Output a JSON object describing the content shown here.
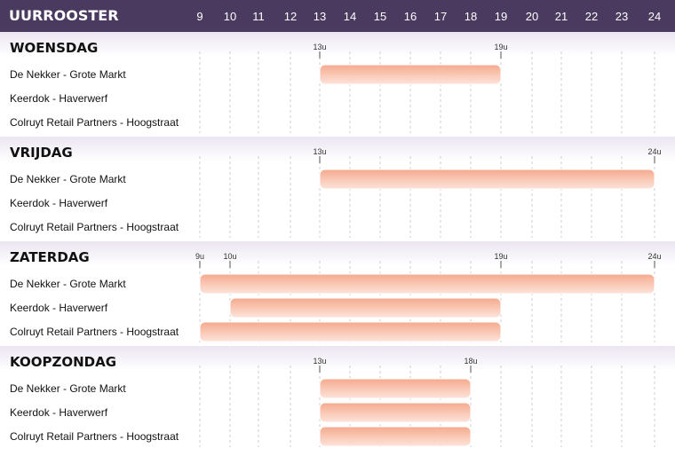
{
  "chart_data": {
    "type": "gantt",
    "title": "UURROOSTER",
    "hours": [
      9,
      10,
      11,
      12,
      13,
      14,
      15,
      16,
      17,
      18,
      19,
      20,
      21,
      22,
      23,
      24
    ],
    "rows": [
      "De Nekker - Grote Markt",
      "Keerdok - Haverwerf",
      "Colruyt Retail Partners - Hoogstraat"
    ],
    "days": [
      {
        "name": "WOENSDAG",
        "bars": [
          {
            "row": 0,
            "start": 13,
            "end": 19,
            "start_label": "13u",
            "end_label": "19u"
          }
        ]
      },
      {
        "name": "VRIJDAG",
        "bars": [
          {
            "row": 0,
            "start": 13,
            "end": 24,
            "start_label": "13u",
            "end_label": "24u"
          }
        ]
      },
      {
        "name": "ZATERDAG",
        "bars": [
          {
            "row": 0,
            "start": 9,
            "end": 24,
            "start_label": "9u",
            "end_label": "24u"
          },
          {
            "row": 1,
            "start": 10,
            "end": 19,
            "start_label": "10u",
            "end_label": "19u"
          },
          {
            "row": 2,
            "start": 9,
            "end": 19,
            "start_label": "9u",
            "end_label": "19u"
          }
        ]
      },
      {
        "name": "KOOPZONDAG",
        "bars": [
          {
            "row": 0,
            "start": 13,
            "end": 18,
            "start_label": "13u",
            "end_label": "18u"
          },
          {
            "row": 1,
            "start": 13,
            "end": 18,
            "start_label": "13u",
            "end_label": "18u"
          },
          {
            "row": 2,
            "start": 13,
            "end": 18,
            "start_label": "13u",
            "end_label": "18u"
          }
        ]
      }
    ],
    "colors": {
      "header": "#4a3a60",
      "section": "#ebe5f1",
      "bar_top": "#f5aa8e",
      "bar_bottom": "#fde4da"
    }
  }
}
